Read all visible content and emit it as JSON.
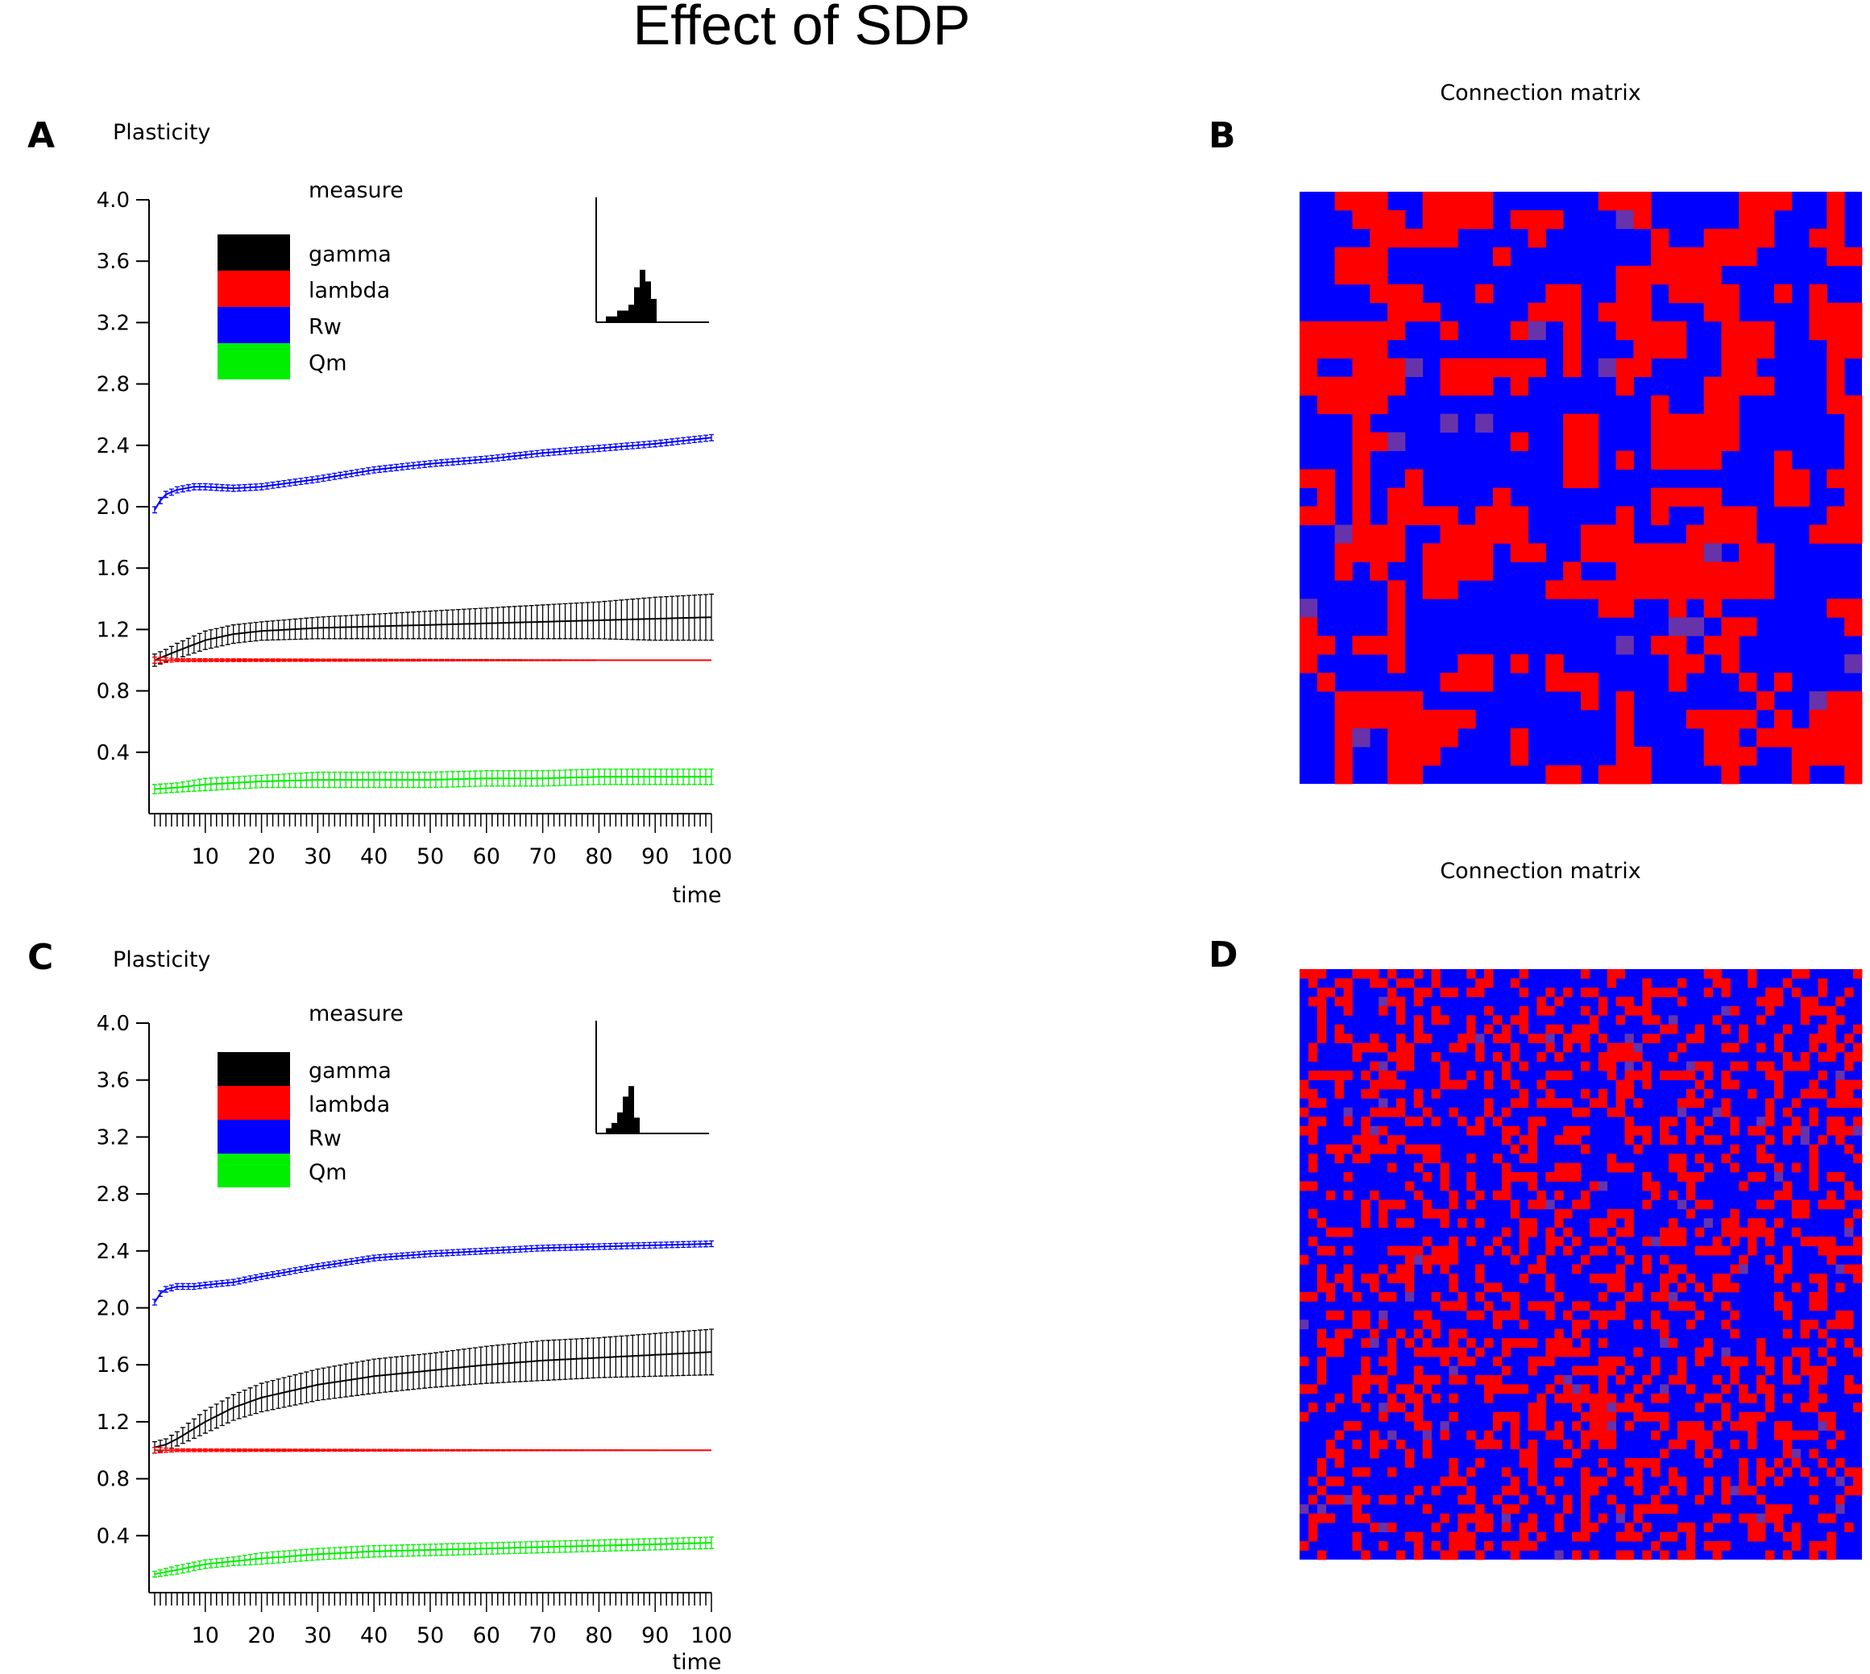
{
  "figure": {
    "title": "Effect of SDP",
    "colors": {
      "gamma": "#000000",
      "lambda": "#ff0000",
      "Rw": "#0000ff",
      "Qm": "#00ee00",
      "matrix_on": "#ff0000",
      "matrix_off": "#0000ff",
      "matrix_mid": "#6633aa"
    }
  },
  "chart_data": [
    {
      "id": "A",
      "panel_label": "A",
      "type": "line",
      "title": "Plasticity",
      "legend_title": "measure",
      "xlabel": "time",
      "ylabel": "",
      "xlim": [
        0,
        100
      ],
      "ylim": [
        0,
        4.0
      ],
      "yticks": [
        "0.4",
        "0.8",
        "1.2",
        "1.6",
        "2.0",
        "2.4",
        "2.8",
        "3.2",
        "3.6",
        "4.0"
      ],
      "xticks": [
        "10",
        "20",
        "30",
        "40",
        "50",
        "60",
        "70",
        "80",
        "90",
        "100"
      ],
      "legend": [
        "gamma",
        "lambda",
        "Rw",
        "Qm"
      ],
      "series": [
        {
          "name": "gamma",
          "x": [
            1,
            3,
            5,
            10,
            15,
            20,
            30,
            40,
            50,
            60,
            70,
            80,
            90,
            100
          ],
          "y": [
            1.0,
            1.03,
            1.06,
            1.13,
            1.17,
            1.19,
            1.21,
            1.22,
            1.23,
            1.24,
            1.25,
            1.26,
            1.27,
            1.28
          ],
          "err": [
            0.04,
            0.04,
            0.05,
            0.06,
            0.06,
            0.06,
            0.07,
            0.08,
            0.09,
            0.1,
            0.11,
            0.12,
            0.14,
            0.15
          ]
        },
        {
          "name": "lambda",
          "x": [
            1,
            5,
            100
          ],
          "y": [
            1.0,
            1.0,
            1.0
          ],
          "err": [
            0.02,
            0.01,
            0.0
          ]
        },
        {
          "name": "Rw",
          "x": [
            1,
            2,
            3,
            5,
            8,
            10,
            15,
            20,
            30,
            40,
            50,
            60,
            70,
            80,
            90,
            100
          ],
          "y": [
            1.98,
            2.04,
            2.08,
            2.11,
            2.13,
            2.13,
            2.12,
            2.13,
            2.18,
            2.24,
            2.28,
            2.31,
            2.35,
            2.38,
            2.41,
            2.45
          ],
          "err": [
            0.02,
            0.02,
            0.02,
            0.02,
            0.02,
            0.02,
            0.02,
            0.02,
            0.02,
            0.02,
            0.02,
            0.02,
            0.02,
            0.02,
            0.02,
            0.02
          ]
        },
        {
          "name": "Qm",
          "x": [
            1,
            5,
            10,
            15,
            20,
            30,
            40,
            50,
            60,
            70,
            80,
            90,
            100
          ],
          "y": [
            0.16,
            0.17,
            0.19,
            0.2,
            0.21,
            0.22,
            0.22,
            0.22,
            0.23,
            0.23,
            0.24,
            0.24,
            0.24
          ],
          "err": [
            0.03,
            0.03,
            0.04,
            0.04,
            0.04,
            0.05,
            0.05,
            0.05,
            0.05,
            0.05,
            0.05,
            0.05,
            0.05
          ]
        }
      ],
      "inset_histogram": {
        "values": [
          1,
          1,
          2,
          2,
          3,
          6,
          9,
          7,
          4
        ]
      }
    },
    {
      "id": "C",
      "panel_label": "C",
      "type": "line",
      "title": "Plasticity",
      "legend_title": "measure",
      "xlabel": "time",
      "ylabel": "",
      "xlim": [
        0,
        100
      ],
      "ylim": [
        0,
        4.0
      ],
      "yticks": [
        "0.4",
        "0.8",
        "1.2",
        "1.6",
        "2.0",
        "2.4",
        "2.8",
        "3.2",
        "3.6",
        "4.0"
      ],
      "xticks": [
        "10",
        "20",
        "30",
        "40",
        "50",
        "60",
        "70",
        "80",
        "90",
        "100"
      ],
      "legend": [
        "gamma",
        "lambda",
        "Rw",
        "Qm"
      ],
      "series": [
        {
          "name": "gamma",
          "x": [
            1,
            3,
            5,
            10,
            15,
            20,
            30,
            40,
            50,
            60,
            70,
            80,
            90,
            100
          ],
          "y": [
            1.02,
            1.04,
            1.08,
            1.2,
            1.3,
            1.37,
            1.46,
            1.52,
            1.56,
            1.6,
            1.63,
            1.65,
            1.67,
            1.69
          ],
          "err": [
            0.04,
            0.04,
            0.05,
            0.08,
            0.09,
            0.1,
            0.11,
            0.12,
            0.12,
            0.13,
            0.14,
            0.14,
            0.15,
            0.16
          ]
        },
        {
          "name": "lambda",
          "x": [
            1,
            5,
            100
          ],
          "y": [
            1.0,
            1.0,
            1.0
          ],
          "err": [
            0.02,
            0.01,
            0.0
          ]
        },
        {
          "name": "Rw",
          "x": [
            1,
            2,
            3,
            5,
            8,
            10,
            15,
            20,
            30,
            40,
            50,
            60,
            70,
            80,
            90,
            100
          ],
          "y": [
            2.04,
            2.1,
            2.13,
            2.15,
            2.15,
            2.16,
            2.18,
            2.22,
            2.29,
            2.35,
            2.38,
            2.4,
            2.42,
            2.43,
            2.44,
            2.45
          ],
          "err": [
            0.02,
            0.02,
            0.02,
            0.02,
            0.02,
            0.02,
            0.02,
            0.02,
            0.02,
            0.02,
            0.02,
            0.02,
            0.02,
            0.02,
            0.02,
            0.02
          ]
        },
        {
          "name": "Qm",
          "x": [
            1,
            5,
            10,
            15,
            20,
            30,
            40,
            50,
            60,
            70,
            80,
            90,
            100
          ],
          "y": [
            0.13,
            0.16,
            0.2,
            0.22,
            0.24,
            0.27,
            0.29,
            0.3,
            0.31,
            0.32,
            0.33,
            0.34,
            0.35
          ],
          "err": [
            0.02,
            0.03,
            0.03,
            0.03,
            0.04,
            0.04,
            0.04,
            0.04,
            0.04,
            0.04,
            0.04,
            0.04,
            0.04
          ]
        }
      ],
      "inset_histogram": {
        "values": [
          1,
          2,
          4,
          7,
          9,
          3
        ]
      }
    },
    {
      "id": "B",
      "panel_label": "B",
      "type": "heatmap",
      "title": "Connection matrix",
      "size": 32,
      "fill_density": 0.4,
      "cluster_smoothing": 1
    },
    {
      "id": "D",
      "panel_label": "D",
      "type": "heatmap",
      "title": "Connection matrix",
      "size": 64,
      "fill_density": 0.34,
      "cluster_smoothing": 0
    }
  ]
}
